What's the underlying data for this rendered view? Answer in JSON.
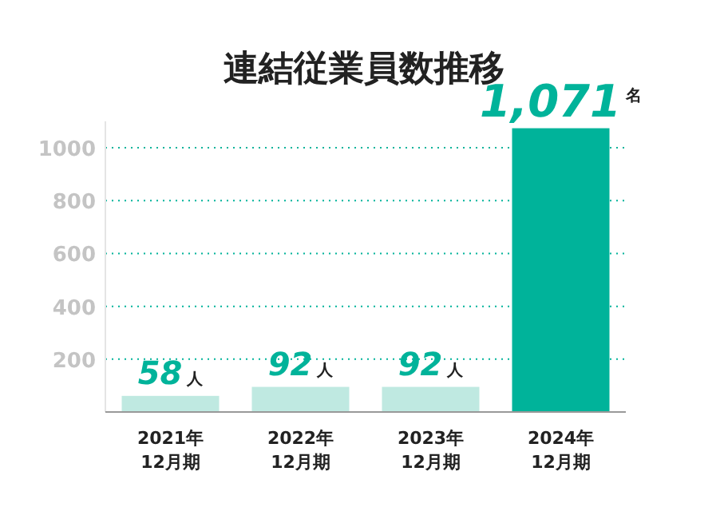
{
  "chart_data": {
    "type": "bar",
    "title": "連結従業員数推移",
    "categories": [
      "2021年\n12月期",
      "2022年\n12月期",
      "2023年\n12月期",
      "2024年\n12月期"
    ],
    "values": [
      58,
      92,
      92,
      1071
    ],
    "colors": [
      "#bfe9e1",
      "#bfe9e1",
      "#bfe9e1",
      "#00b39a"
    ],
    "value_labels": [
      "58人",
      "92人",
      "92人",
      "1,071$^{名}$"
    ],
    "ylim": [
      0,
      1100
    ],
    "yticks": [
      200,
      400,
      600,
      800,
      1000
    ],
    "grid": "y"
  }
}
